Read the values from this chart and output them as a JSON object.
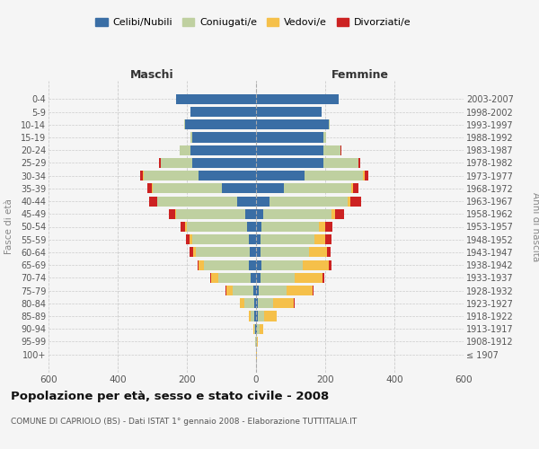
{
  "age_groups": [
    "100+",
    "95-99",
    "90-94",
    "85-89",
    "80-84",
    "75-79",
    "70-74",
    "65-69",
    "60-64",
    "55-59",
    "50-54",
    "45-49",
    "40-44",
    "35-39",
    "30-34",
    "25-29",
    "20-24",
    "15-19",
    "10-14",
    "5-9",
    "0-4"
  ],
  "birth_years": [
    "≤ 1907",
    "1908-1912",
    "1913-1917",
    "1918-1922",
    "1923-1927",
    "1928-1932",
    "1933-1937",
    "1938-1942",
    "1943-1947",
    "1948-1952",
    "1953-1957",
    "1958-1962",
    "1963-1967",
    "1968-1972",
    "1973-1977",
    "1978-1982",
    "1983-1987",
    "1988-1992",
    "1993-1997",
    "1998-2002",
    "2003-2007"
  ],
  "colors": {
    "celibi": "#3a6ea5",
    "coniugati": "#bfd0a0",
    "vedovi": "#f5c04a",
    "divorziati": "#cc2222"
  },
  "males": {
    "celibi": [
      0,
      1,
      2,
      4,
      5,
      8,
      15,
      20,
      18,
      20,
      25,
      30,
      55,
      100,
      165,
      185,
      190,
      185,
      205,
      190,
      230
    ],
    "coniugati": [
      0,
      1,
      4,
      12,
      30,
      60,
      95,
      130,
      155,
      165,
      175,
      200,
      230,
      200,
      160,
      90,
      30,
      5,
      2,
      0,
      0
    ],
    "vedovi": [
      0,
      0,
      2,
      5,
      12,
      18,
      20,
      15,
      10,
      6,
      4,
      3,
      2,
      1,
      1,
      1,
      0,
      0,
      0,
      0,
      0
    ],
    "divorziati": [
      0,
      0,
      0,
      0,
      1,
      2,
      3,
      5,
      8,
      12,
      15,
      18,
      22,
      12,
      10,
      4,
      1,
      0,
      0,
      0,
      0
    ]
  },
  "females": {
    "celibi": [
      0,
      1,
      2,
      4,
      5,
      8,
      12,
      15,
      14,
      14,
      16,
      22,
      40,
      80,
      140,
      195,
      195,
      195,
      210,
      190,
      240
    ],
    "coniugati": [
      1,
      2,
      8,
      20,
      45,
      80,
      100,
      120,
      140,
      155,
      165,
      195,
      225,
      195,
      170,
      100,
      50,
      8,
      2,
      0,
      0
    ],
    "vedovi": [
      1,
      3,
      10,
      35,
      60,
      75,
      80,
      75,
      50,
      30,
      18,
      12,
      8,
      5,
      3,
      1,
      0,
      0,
      0,
      0,
      0
    ],
    "divorziati": [
      0,
      0,
      0,
      1,
      2,
      3,
      5,
      8,
      12,
      18,
      22,
      25,
      30,
      15,
      12,
      4,
      1,
      0,
      0,
      0,
      0
    ]
  },
  "xlim": 600,
  "title": "Popolazione per età, sesso e stato civile - 2008",
  "subtitle": "COMUNE DI CAPRIOLO (BS) - Dati ISTAT 1° gennaio 2008 - Elaborazione TUTTITALIA.IT",
  "ylabel_left": "Fasce di età",
  "ylabel_right": "Anni di nascita",
  "xlabel_maschi": "Maschi",
  "xlabel_femmine": "Femmine",
  "legend_labels": [
    "Celibi/Nubili",
    "Coniugati/e",
    "Vedovi/e",
    "Divorziati/e"
  ],
  "background_color": "#f5f5f5",
  "grid_color": "#cccccc"
}
